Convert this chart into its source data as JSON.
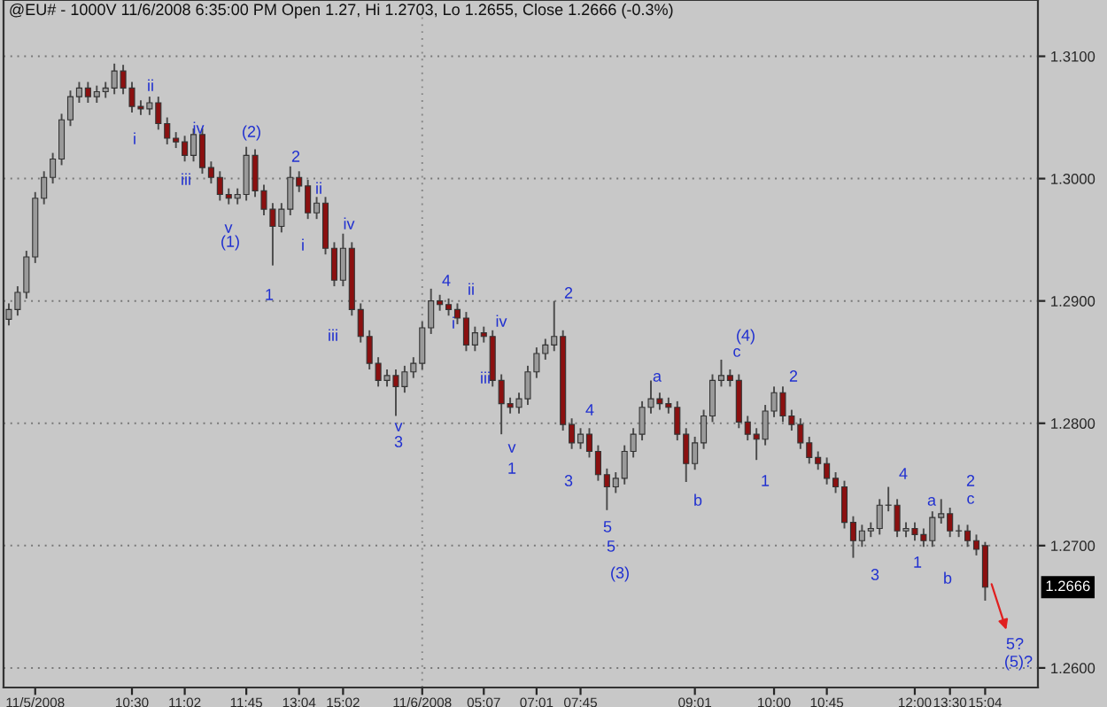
{
  "chart_data": {
    "type": "candlestick",
    "title": "@EU# - 1000V 11/6/2008 6:35:00 PM Open 1.27, Hi 1.2703, Lo 1.2655, Close 1.2666 (-0.3%)",
    "categories": [
      null,
      null,
      null,
      "11/5/2008",
      null,
      null,
      null,
      null,
      null,
      null,
      null,
      null,
      null,
      null,
      "10:30",
      null,
      null,
      null,
      null,
      null,
      "11:02",
      null,
      null,
      null,
      null,
      null,
      null,
      "11:45",
      null,
      null,
      null,
      null,
      null,
      "13:04",
      null,
      null,
      null,
      null,
      "15:02",
      null,
      null,
      null,
      null,
      null,
      null,
      null,
      null,
      "11/6/2008",
      null,
      null,
      null,
      null,
      null,
      null,
      "05:07",
      null,
      null,
      null,
      null,
      null,
      "07:01",
      null,
      null,
      null,
      null,
      "07:45",
      null,
      null,
      null,
      null,
      null,
      null,
      null,
      null,
      null,
      null,
      null,
      null,
      "09:01",
      null,
      null,
      null,
      null,
      null,
      null,
      null,
      null,
      "10:00",
      null,
      null,
      null,
      null,
      null,
      "10:45",
      null,
      null,
      null,
      null,
      null,
      null,
      null,
      null,
      null,
      "12:00",
      null,
      null,
      null,
      "13:30",
      null,
      null,
      null,
      "15:04"
    ],
    "ohlc": [
      [
        1.2885,
        1.2898,
        1.288,
        1.2893
      ],
      [
        1.2893,
        1.2912,
        1.2888,
        1.2907
      ],
      [
        1.2907,
        1.2941,
        1.2902,
        1.2936
      ],
      [
        1.2936,
        1.2989,
        1.2931,
        1.2984
      ],
      [
        1.2984,
        1.3006,
        1.2979,
        1.3001
      ],
      [
        1.3001,
        1.3021,
        1.2996,
        1.3016
      ],
      [
        1.3016,
        1.3053,
        1.3011,
        1.3048
      ],
      [
        1.3048,
        1.3072,
        1.3043,
        1.3067
      ],
      [
        1.3067,
        1.3079,
        1.3062,
        1.3074
      ],
      [
        1.3074,
        1.3079,
        1.3062,
        1.3067
      ],
      [
        1.3067,
        1.3076,
        1.3062,
        1.3071
      ],
      [
        1.3071,
        1.3079,
        1.3066,
        1.3074
      ],
      [
        1.3074,
        1.3094,
        1.3069,
        1.3088
      ],
      [
        1.3088,
        1.3093,
        1.3069,
        1.3074
      ],
      [
        1.3074,
        1.3079,
        1.3054,
        1.3059
      ],
      [
        1.3059,
        1.3064,
        1.3052,
        1.3057
      ],
      [
        1.3057,
        1.3067,
        1.3052,
        1.3062
      ],
      [
        1.3062,
        1.3067,
        1.304,
        1.3045
      ],
      [
        1.3045,
        1.305,
        1.3028,
        1.3033
      ],
      [
        1.3033,
        1.3038,
        1.3025,
        1.303
      ],
      [
        1.303,
        1.3035,
        1.3014,
        1.3019
      ],
      [
        1.3019,
        1.3041,
        1.3014,
        1.3036
      ],
      [
        1.3036,
        1.3041,
        1.3004,
        1.3009
      ],
      [
        1.3009,
        1.3014,
        1.2996,
        1.3001
      ],
      [
        1.3001,
        1.3006,
        1.2982,
        1.2987
      ],
      [
        1.2987,
        1.2992,
        1.2979,
        1.2984
      ],
      [
        1.2984,
        1.2992,
        1.2979,
        1.2987
      ],
      [
        1.2987,
        1.3026,
        1.2982,
        1.3019
      ],
      [
        1.3019,
        1.3024,
        1.2985,
        1.299
      ],
      [
        1.299,
        1.2995,
        1.297,
        1.2975
      ],
      [
        1.2975,
        1.298,
        1.2929,
        1.2961
      ],
      [
        1.2961,
        1.298,
        1.2956,
        1.2975
      ],
      [
        1.2975,
        1.301,
        1.297,
        1.3001
      ],
      [
        1.3001,
        1.3006,
        1.2989,
        1.2994
      ],
      [
        1.2994,
        1.2999,
        1.2967,
        1.2972
      ],
      [
        1.2972,
        1.2985,
        1.2967,
        1.298
      ],
      [
        1.298,
        1.2985,
        1.2938,
        1.2943
      ],
      [
        1.2943,
        1.2948,
        1.2912,
        1.2917
      ],
      [
        1.2917,
        1.2955,
        1.2912,
        1.2943
      ],
      [
        1.2943,
        1.2948,
        1.2888,
        1.2893
      ],
      [
        1.2893,
        1.2898,
        1.2866,
        1.2871
      ],
      [
        1.2871,
        1.2876,
        1.2844,
        1.2849
      ],
      [
        1.2849,
        1.2854,
        1.283,
        1.2835
      ],
      [
        1.2835,
        1.2844,
        1.283,
        1.2839
      ],
      [
        1.2839,
        1.2844,
        1.2806,
        1.283
      ],
      [
        1.283,
        1.2847,
        1.2825,
        1.2842
      ],
      [
        1.2842,
        1.2854,
        1.2837,
        1.2849
      ],
      [
        1.2849,
        1.2883,
        1.2844,
        1.2878
      ],
      [
        1.2878,
        1.291,
        1.2873,
        1.29
      ],
      [
        1.29,
        1.2905,
        1.2892,
        1.2897
      ],
      [
        1.2897,
        1.2902,
        1.2888,
        1.2893
      ],
      [
        1.2893,
        1.2898,
        1.2881,
        1.2886
      ],
      [
        1.2886,
        1.2891,
        1.2859,
        1.2864
      ],
      [
        1.2864,
        1.2879,
        1.2859,
        1.2874
      ],
      [
        1.2874,
        1.2879,
        1.2866,
        1.2871
      ],
      [
        1.2871,
        1.2876,
        1.283,
        1.2835
      ],
      [
        1.2835,
        1.284,
        1.2791,
        1.2816
      ],
      [
        1.2816,
        1.2821,
        1.2808,
        1.2813
      ],
      [
        1.2813,
        1.2825,
        1.2808,
        1.282
      ],
      [
        1.282,
        1.2847,
        1.2815,
        1.2842
      ],
      [
        1.2842,
        1.2862,
        1.2837,
        1.2857
      ],
      [
        1.2857,
        1.2869,
        1.2852,
        1.2864
      ],
      [
        1.2864,
        1.29,
        1.2859,
        1.2871
      ],
      [
        1.2871,
        1.2876,
        1.2794,
        1.2799
      ],
      [
        1.2799,
        1.2804,
        1.2779,
        1.2784
      ],
      [
        1.2784,
        1.2796,
        1.2779,
        1.2791
      ],
      [
        1.2791,
        1.2796,
        1.2772,
        1.2777
      ],
      [
        1.2777,
        1.2782,
        1.2753,
        1.2758
      ],
      [
        1.2758,
        1.2763,
        1.2729,
        1.2748
      ],
      [
        1.2748,
        1.276,
        1.2743,
        1.2755
      ],
      [
        1.2755,
        1.2782,
        1.275,
        1.2777
      ],
      [
        1.2777,
        1.2796,
        1.2772,
        1.2791
      ],
      [
        1.2791,
        1.2818,
        1.2786,
        1.2813
      ],
      [
        1.2813,
        1.2835,
        1.2808,
        1.282
      ],
      [
        1.282,
        1.2825,
        1.2811,
        1.2816
      ],
      [
        1.2816,
        1.2821,
        1.2808,
        1.2813
      ],
      [
        1.2813,
        1.2818,
        1.2786,
        1.2791
      ],
      [
        1.2791,
        1.2796,
        1.2752,
        1.2767
      ],
      [
        1.2767,
        1.2789,
        1.2762,
        1.2784
      ],
      [
        1.2784,
        1.2811,
        1.2779,
        1.2806
      ],
      [
        1.2806,
        1.284,
        1.2801,
        1.2835
      ],
      [
        1.2835,
        1.2852,
        1.283,
        1.2839
      ],
      [
        1.2839,
        1.2844,
        1.283,
        1.2835
      ],
      [
        1.2835,
        1.284,
        1.2796,
        1.2801
      ],
      [
        1.2801,
        1.2806,
        1.2786,
        1.2791
      ],
      [
        1.2791,
        1.2796,
        1.277,
        1.2787
      ],
      [
        1.2787,
        1.2815,
        1.2782,
        1.281
      ],
      [
        1.281,
        1.283,
        1.2805,
        1.2825
      ],
      [
        1.2825,
        1.283,
        1.2801,
        1.2806
      ],
      [
        1.2806,
        1.2811,
        1.2794,
        1.2799
      ],
      [
        1.2799,
        1.2804,
        1.2779,
        1.2784
      ],
      [
        1.2784,
        1.2789,
        1.2767,
        1.2772
      ],
      [
        1.2772,
        1.2777,
        1.2762,
        1.2767
      ],
      [
        1.2767,
        1.2772,
        1.275,
        1.2755
      ],
      [
        1.2755,
        1.276,
        1.2743,
        1.2748
      ],
      [
        1.2748,
        1.2753,
        1.2714,
        1.2719
      ],
      [
        1.2719,
        1.2724,
        1.269,
        1.2704
      ],
      [
        1.2704,
        1.2717,
        1.2699,
        1.2712
      ],
      [
        1.2712,
        1.2719,
        1.2707,
        1.2714
      ],
      [
        1.2714,
        1.2738,
        1.2709,
        1.2733
      ],
      [
        1.2733,
        1.2748,
        1.2728,
        1.2733
      ],
      [
        1.2733,
        1.2738,
        1.2707,
        1.2712
      ],
      [
        1.2712,
        1.2719,
        1.2707,
        1.2714
      ],
      [
        1.2714,
        1.2719,
        1.2704,
        1.2709
      ],
      [
        1.2709,
        1.2714,
        1.2699,
        1.2704
      ],
      [
        1.2704,
        1.2728,
        1.2699,
        1.2723
      ],
      [
        1.2723,
        1.2738,
        1.2718,
        1.2726
      ],
      [
        1.2726,
        1.2731,
        1.2707,
        1.2712
      ],
      [
        1.2712,
        1.2717,
        1.2707,
        1.2712
      ],
      [
        1.2712,
        1.2717,
        1.2699,
        1.2704
      ],
      [
        1.2704,
        1.2709,
        1.2692,
        1.2697
      ],
      [
        1.27,
        1.2703,
        1.2655,
        1.2666
      ]
    ],
    "ylim": [
      1.2584,
      1.3146
    ],
    "yticks": [
      {
        "value": 1.26,
        "label": "1.2600"
      },
      {
        "value": 1.27,
        "label": "1.2700"
      },
      {
        "value": 1.28,
        "label": "1.2800"
      },
      {
        "value": 1.29,
        "label": "1.2900"
      },
      {
        "value": 1.3,
        "label": "1.3000"
      },
      {
        "value": 1.31,
        "label": "1.3100"
      }
    ],
    "grid": "y",
    "ref_lines": [
      {
        "axis": "x",
        "value": "11/6/2008",
        "color": "#888888",
        "line_style": "dotted"
      }
    ],
    "annotations": [
      "i",
      "ii",
      "iii",
      "iv",
      "(2)",
      "v",
      "(1)",
      "2",
      "ii",
      "i",
      "iv",
      "1",
      "iii",
      "4",
      "ii",
      "i",
      "iv",
      "iii",
      "v",
      "3",
      "v",
      "1",
      "2",
      "(4)",
      "c",
      "a",
      "2",
      "4",
      "3",
      "b",
      "1",
      "5",
      "5",
      "(3)",
      "4",
      "a",
      "2",
      "c",
      "3",
      "1",
      "b",
      "5?",
      "(5)?",
      "1.2666"
    ]
  }
}
